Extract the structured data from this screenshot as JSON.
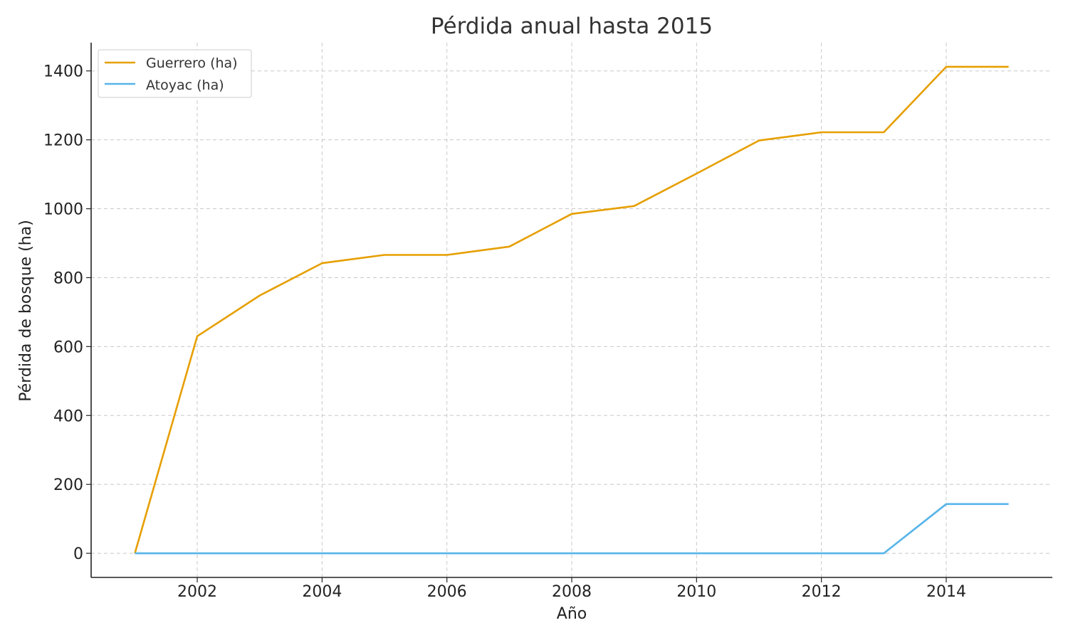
{
  "chart_data": {
    "type": "line",
    "title": "Pérdida anual hasta 2015",
    "xlabel": "Año",
    "ylabel": "Pérdida de bosque (ha)",
    "x": [
      2001,
      2002,
      2003,
      2004,
      2005,
      2006,
      2007,
      2008,
      2009,
      2010,
      2011,
      2012,
      2013,
      2014,
      2015
    ],
    "series": [
      {
        "name": "Guerrero (ha)",
        "color": "#E69F00",
        "values": [
          0,
          630,
          748,
          842,
          866,
          866,
          890,
          985,
          1008,
          1102,
          1198,
          1222,
          1222,
          1412,
          1412
        ]
      },
      {
        "name": "Atoyac (ha)",
        "color": "#56B4E9",
        "values": [
          0,
          0,
          0,
          0,
          0,
          0,
          0,
          0,
          0,
          0,
          0,
          0,
          0,
          143,
          143
        ]
      }
    ],
    "xlim": [
      2000.3,
      2015.7
    ],
    "ylim": [
      -70,
      1482
    ],
    "xticks": [
      2002,
      2004,
      2006,
      2008,
      2010,
      2012,
      2014
    ],
    "yticks": [
      0,
      200,
      400,
      600,
      800,
      1000,
      1200,
      1400
    ],
    "grid": true,
    "legend_position": "top-left"
  }
}
